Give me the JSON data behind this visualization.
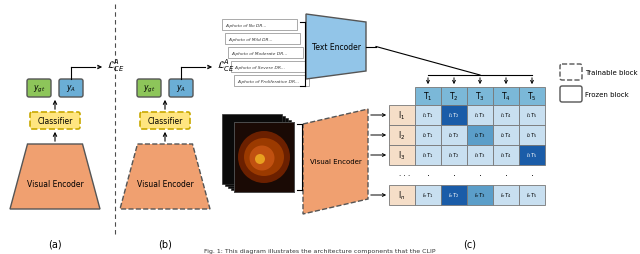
{
  "bg_color": "#ffffff",
  "orange_color": "#F0A070",
  "orange_dashed_color": "#F0A070",
  "green_color": "#8DC55A",
  "blue_box_color": "#6BAED6",
  "yellow_color": "#FFE580",
  "yellow_border": "#C8A800",
  "light_blue_encoder": "#92C5E8",
  "light_blue_grid_header": "#7BB8D8",
  "light_blue_cell": "#C8DFF0",
  "mid_blue_cell": "#5B9EC9",
  "dark_blue_cell": "#1A5CA8",
  "peach_i_cell": "#F5DEC8",
  "text_prompts": [
    "A photo of No DR...",
    "A photo of Mild DR...",
    "A photo of Moderate DR...",
    "A photo of Severe DR...",
    "A photo of Proliferative DR..."
  ],
  "T_labels": [
    "T$_1$",
    "T$_2$",
    "T$_3$",
    "T$_4$",
    "T$_5$"
  ],
  "I_labels": [
    "I$_1$",
    "I$_2$",
    "I$_3$",
    "...",
    "I$_n$"
  ],
  "row_colors": [
    [
      "light",
      "dark",
      "light",
      "light",
      "light"
    ],
    [
      "light",
      "light",
      "mid",
      "light",
      "light"
    ],
    [
      "light",
      "light",
      "light",
      "light",
      "dark"
    ],
    [
      "dots",
      "dots",
      "dots",
      "dots",
      "dots"
    ],
    [
      "light",
      "dark",
      "mid",
      "light",
      "light"
    ]
  ],
  "caption": "Fig. 1: This diagram illustrates the architecture components that the CLIP"
}
